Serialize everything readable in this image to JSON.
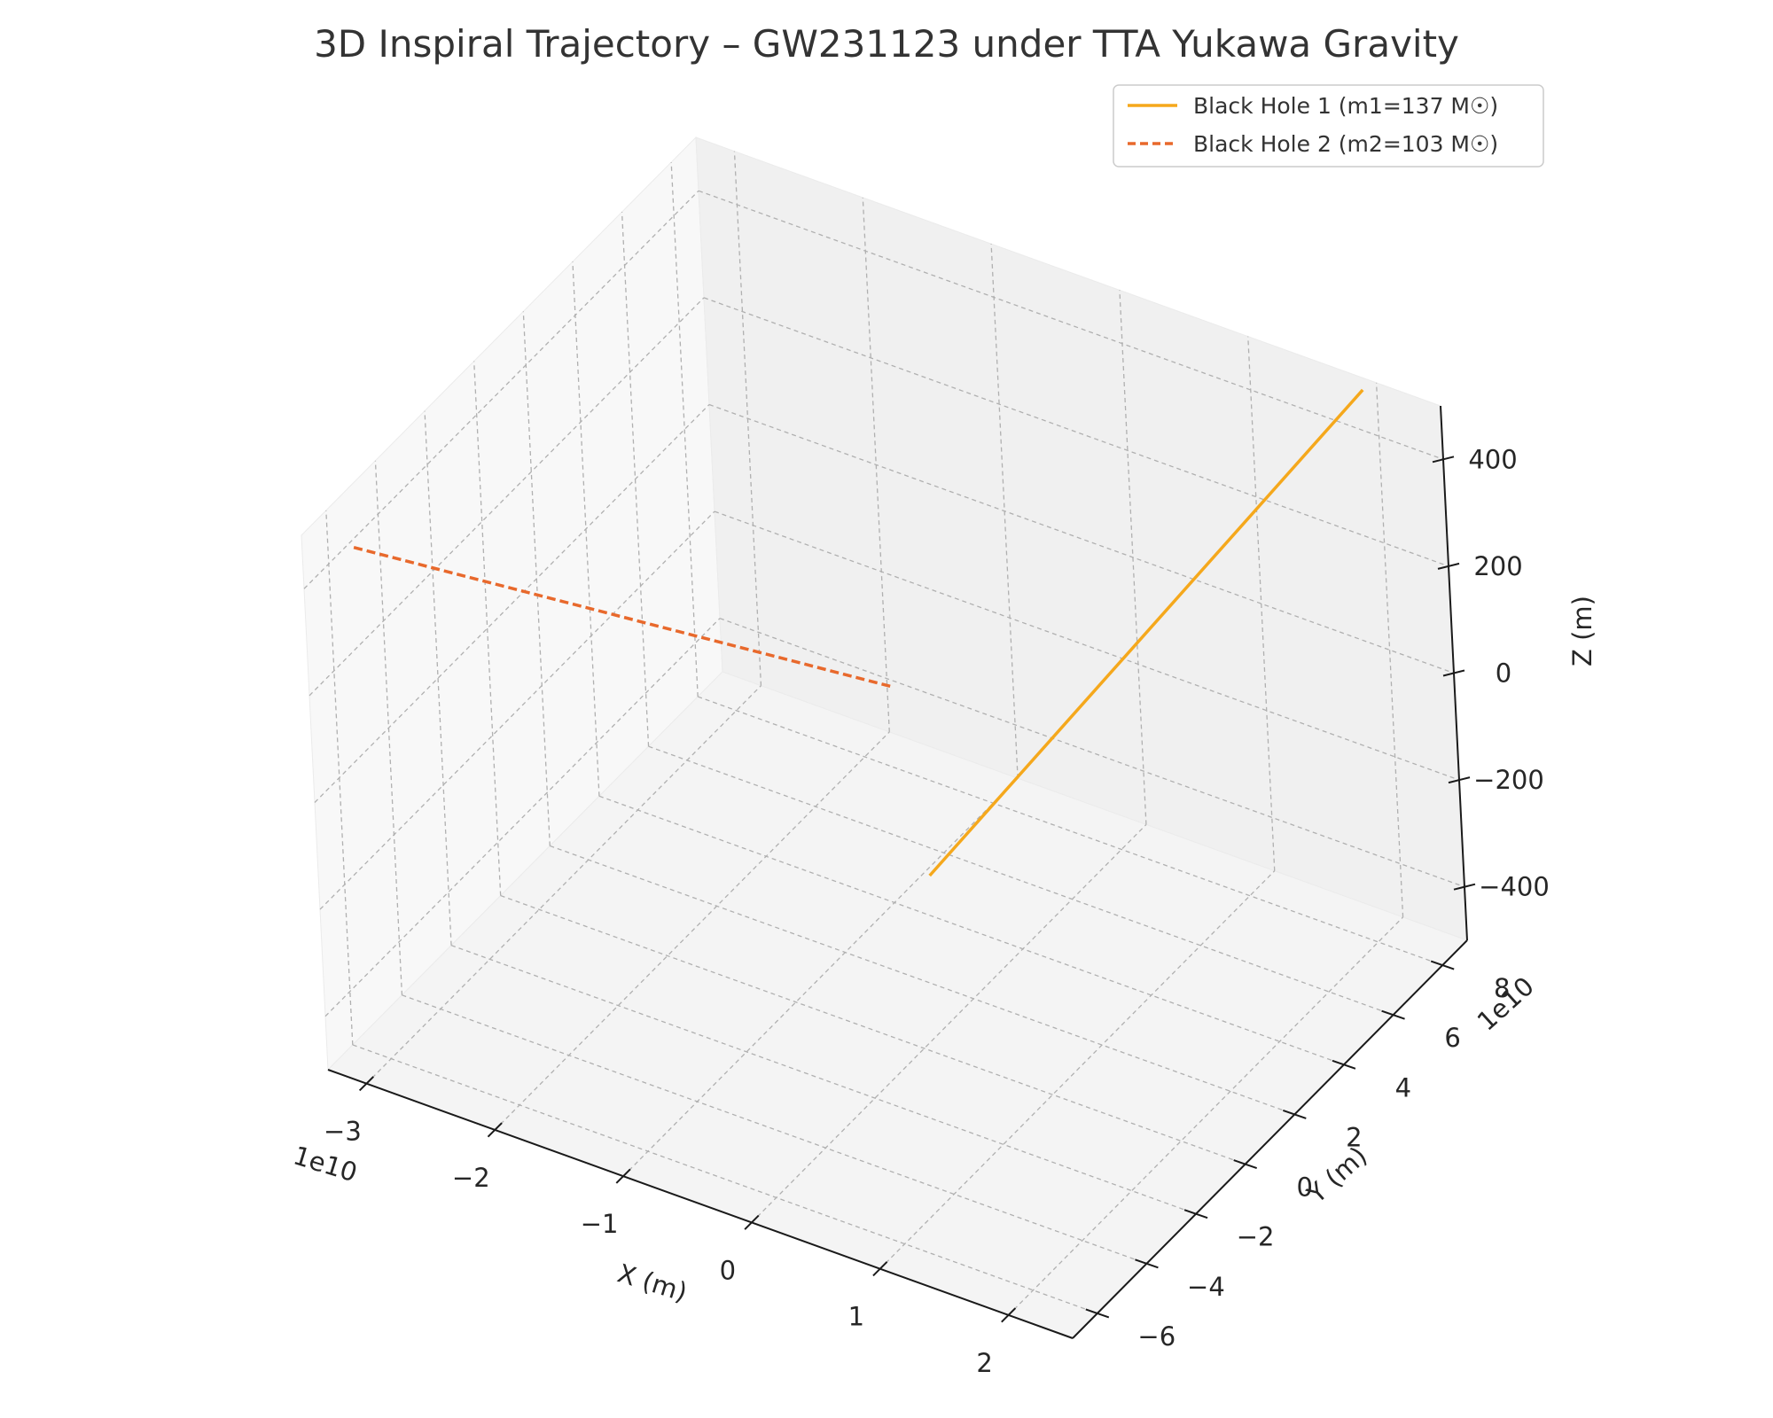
{
  "chart_data": {
    "type": "line",
    "projection": "3d",
    "title": "3D Inspiral Trajectory – GW231123 under TTA Yukawa Gravity",
    "xlabel": "X (m)",
    "ylabel": "Y (m)",
    "zlabel": "Z (m)",
    "x_offset_text": "1e10",
    "y_offset_text": "1e10",
    "xlim": [
      -3.3,
      2.5
    ],
    "ylim": [
      -7,
      9
    ],
    "zlim": [
      -500,
      500
    ],
    "x_ticks": [
      -3,
      -2,
      -1,
      0,
      1,
      2
    ],
    "x_tick_labels": [
      "−3",
      "−2",
      "−1",
      "0",
      "1",
      "2"
    ],
    "y_ticks": [
      -6,
      -4,
      -2,
      0,
      2,
      4,
      6,
      8
    ],
    "y_tick_labels": [
      "−6",
      "−4",
      "−2",
      "0",
      "2",
      "4",
      "6",
      "8"
    ],
    "z_ticks": [
      -400,
      -200,
      0,
      200,
      400
    ],
    "z_tick_labels": [
      "−400",
      "−200",
      "0",
      "200",
      "400"
    ],
    "grid": true,
    "legend_position": "top-right",
    "series": [
      {
        "name": "Black Hole 1 (m1=137 M☉)",
        "color": "#f5a81c",
        "line_style": "solid",
        "points": [
          [
            0.07,
            0.2,
            -180
          ],
          [
            1.93,
            8.8,
            490
          ]
        ]
      },
      {
        "name": "Black Hole 2 (m2=103 M☉)",
        "color": "#e8692c",
        "line_style": "dashed",
        "points": [
          [
            -2.93,
            -6.8,
            500
          ],
          [
            -0.07,
            -0.2,
            180
          ]
        ]
      }
    ]
  }
}
